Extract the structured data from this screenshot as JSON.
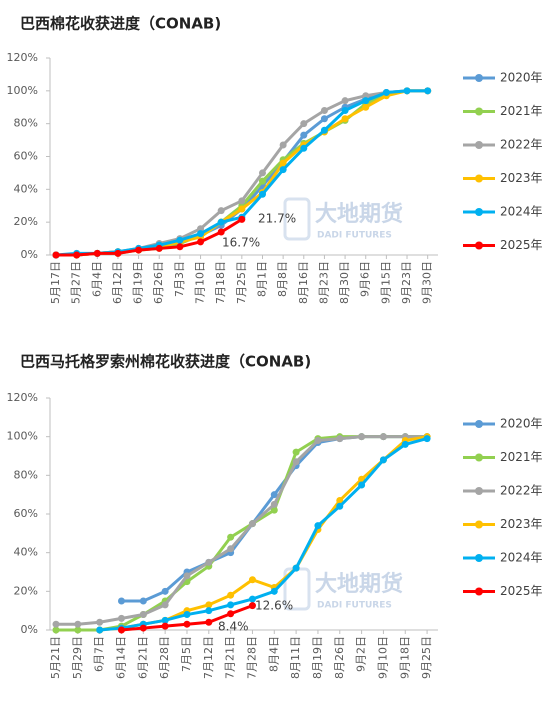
{
  "chart_data": [
    {
      "type": "line",
      "title": "巴西棉花收获进度（CONAB)",
      "categories": [
        "5月17日",
        "5月27日",
        "6月4日",
        "6月12日",
        "6月19日",
        "6月26日",
        "7月3日",
        "7月10日",
        "7月18日",
        "7月25日",
        "8月1日",
        "8月8日",
        "8月16日",
        "8月23日",
        "8月30日",
        "9月6日",
        "9月15日",
        "9月23日",
        "9月30日"
      ],
      "ylim": [
        0,
        120
      ],
      "yticks": [
        {
          "value": 0,
          "label": "0%"
        },
        {
          "value": 20,
          "label": "20%"
        },
        {
          "value": 40,
          "label": "40%"
        },
        {
          "value": 60,
          "label": "60%"
        },
        {
          "value": 80,
          "label": "80%"
        },
        {
          "value": 100,
          "label": "100%"
        },
        {
          "value": 120,
          "label": "120%"
        }
      ],
      "legend": "right",
      "watermark": [
        "大地期货",
        "DADI FUTURES"
      ],
      "annotations": [
        "21.7%",
        "16.7%"
      ],
      "series": [
        {
          "name": "2020年",
          "color": "#5b9bd5",
          "values": [
            0,
            0,
            1,
            2,
            3,
            5,
            8,
            12,
            18,
            28,
            42,
            57,
            73,
            83,
            90,
            95,
            99,
            100,
            100
          ]
        },
        {
          "name": "2021年",
          "color": "#92d050",
          "values": [
            0,
            0,
            1,
            1,
            3,
            4,
            7,
            12,
            20,
            30,
            45,
            58,
            68,
            75,
            82,
            92,
            98,
            100,
            100
          ]
        },
        {
          "name": "2022年",
          "color": "#a5a5a5",
          "values": [
            0,
            0,
            1,
            2,
            4,
            7,
            10,
            16,
            27,
            33,
            50,
            67,
            80,
            88,
            94,
            97,
            99,
            100,
            100
          ]
        },
        {
          "name": "2023年",
          "color": "#ffc000",
          "values": [
            0,
            0,
            1,
            2,
            3,
            5,
            8,
            11,
            20,
            28,
            38,
            56,
            67,
            75,
            83,
            90,
            97,
            100,
            100
          ]
        },
        {
          "name": "2024年",
          "color": "#00b0f0",
          "values": [
            0,
            1,
            1,
            2,
            4,
            6,
            9,
            13,
            20,
            23,
            37,
            52,
            65,
            76,
            88,
            94,
            99,
            100,
            100
          ]
        },
        {
          "name": "2025年",
          "color": "#ff0000",
          "values": [
            0,
            0,
            1,
            1,
            3,
            4,
            5,
            8,
            14,
            21.7,
            null,
            null,
            null,
            null,
            null,
            null,
            null,
            null,
            null
          ]
        }
      ]
    },
    {
      "type": "line",
      "title": "巴西马托格罗索州棉花收获进度（CONAB)",
      "categories": [
        "5月21日",
        "5月29日",
        "6月7日",
        "6月14日",
        "6月21日",
        "6月28日",
        "7月5日",
        "7月12日",
        "7月21日",
        "7月28日",
        "8月4日",
        "8月11日",
        "8月19日",
        "8月26日",
        "9月2日",
        "9月10日",
        "9月18日",
        "9月25日"
      ],
      "ylim": [
        0,
        120
      ],
      "yticks": [
        {
          "value": 0,
          "label": "0%"
        },
        {
          "value": 20,
          "label": "20%"
        },
        {
          "value": 40,
          "label": "40%"
        },
        {
          "value": 60,
          "label": "60%"
        },
        {
          "value": 80,
          "label": "80%"
        },
        {
          "value": 100,
          "label": "100%"
        },
        {
          "value": 120,
          "label": "120%"
        }
      ],
      "legend": "right",
      "watermark": [
        "大地期货",
        "DADI FUTURES"
      ],
      "annotations": [
        "12.6%",
        "8.4%"
      ],
      "series": [
        {
          "name": "2020年",
          "color": "#5b9bd5",
          "values": [
            null,
            null,
            null,
            15,
            15,
            20,
            30,
            35,
            40,
            55,
            70,
            85,
            97,
            99,
            100,
            100,
            100,
            100
          ]
        },
        {
          "name": "2021年",
          "color": "#92d050",
          "values": [
            0,
            0,
            0,
            2,
            8,
            15,
            25,
            33,
            48,
            55,
            62,
            92,
            99,
            100,
            100,
            100,
            100,
            100
          ]
        },
        {
          "name": "2022年",
          "color": "#a5a5a5",
          "values": [
            3,
            3,
            4,
            6,
            8,
            13,
            28,
            35,
            42,
            55,
            65,
            87,
            98,
            99,
            100,
            100,
            100,
            100
          ]
        },
        {
          "name": "2023年",
          "color": "#ffc000",
          "values": [
            null,
            null,
            0,
            1,
            3,
            5,
            10,
            13,
            18,
            26,
            22,
            32,
            52,
            67,
            78,
            88,
            98,
            100
          ]
        },
        {
          "name": "2024年",
          "color": "#00b0f0",
          "values": [
            null,
            null,
            0,
            1,
            3,
            5,
            8,
            10,
            13,
            16,
            20,
            32,
            54,
            64,
            75,
            88,
            96,
            99
          ]
        },
        {
          "name": "2025年",
          "color": "#ff0000",
          "values": [
            null,
            null,
            null,
            0,
            1,
            2,
            3,
            4,
            8.4,
            12.6,
            null,
            null,
            null,
            null,
            null,
            null,
            null,
            null
          ]
        }
      ]
    }
  ]
}
